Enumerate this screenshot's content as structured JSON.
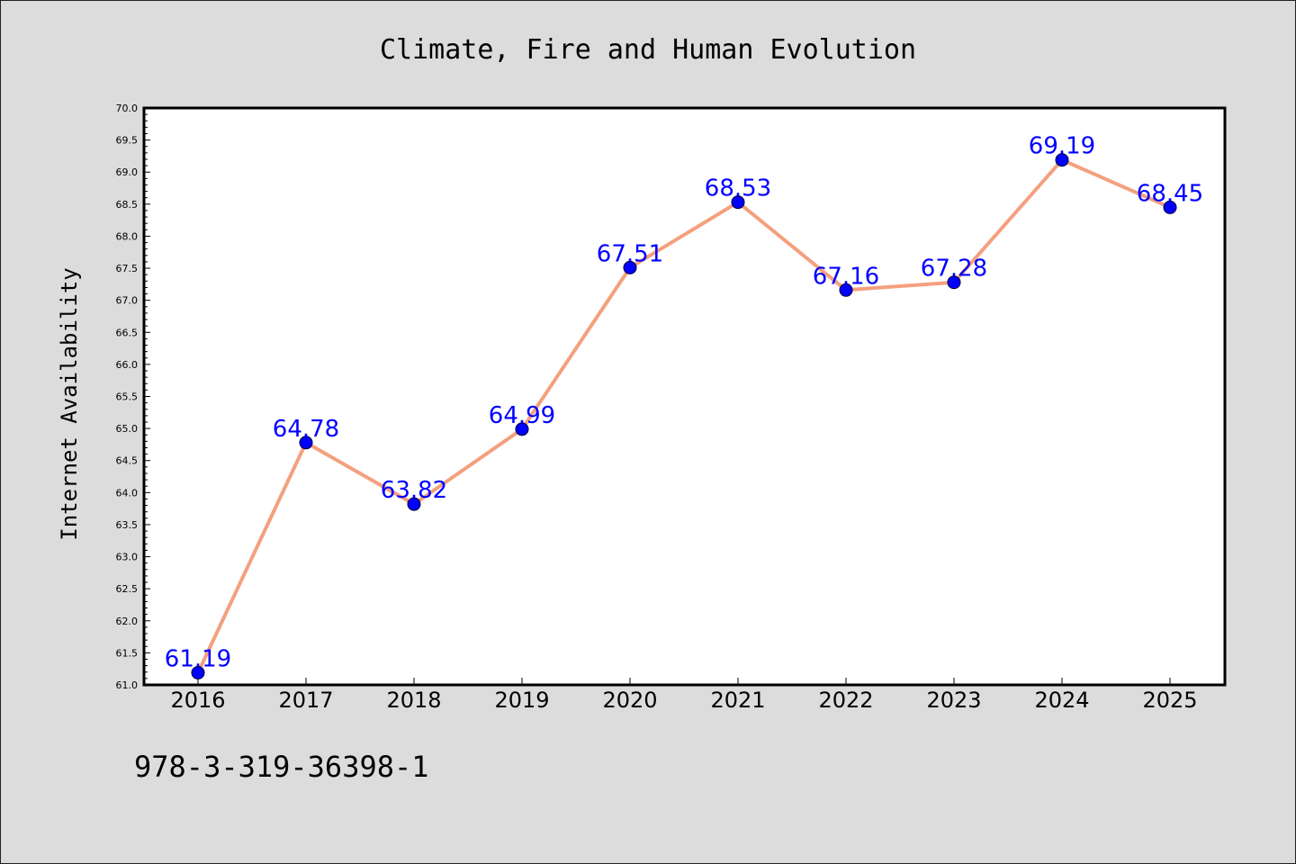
{
  "chart_data": {
    "type": "line",
    "title": "Climate, Fire and Human Evolution",
    "xlabel": "",
    "ylabel": "Internet Availability",
    "ylim": [
      61.0,
      70.0
    ],
    "y_ticks": [
      61.0,
      61.5,
      62.0,
      62.5,
      63.0,
      63.5,
      64.0,
      64.5,
      65.0,
      65.5,
      66.0,
      66.5,
      67.0,
      67.5,
      68.0,
      68.5,
      69.0,
      69.5,
      70.0
    ],
    "categories": [
      "2016",
      "2017",
      "2018",
      "2019",
      "2020",
      "2021",
      "2022",
      "2023",
      "2024",
      "2025"
    ],
    "values": [
      61.19,
      64.78,
      63.82,
      64.99,
      67.51,
      68.53,
      67.16,
      67.28,
      69.19,
      68.45
    ],
    "data_labels": [
      "61.19",
      "64.78",
      "63.82",
      "64.99",
      "67.51",
      "68.53",
      "67.16",
      "67.28",
      "69.19",
      "68.45"
    ],
    "grid": false,
    "legend": "none",
    "line_color": "#f4a07e",
    "marker_color": "#0000ff",
    "label_color": "#0000ff",
    "plot_background": "#ffffff",
    "figure_background": "#dcdcdc"
  },
  "footer": {
    "code": "978-3-319-36398-1"
  }
}
